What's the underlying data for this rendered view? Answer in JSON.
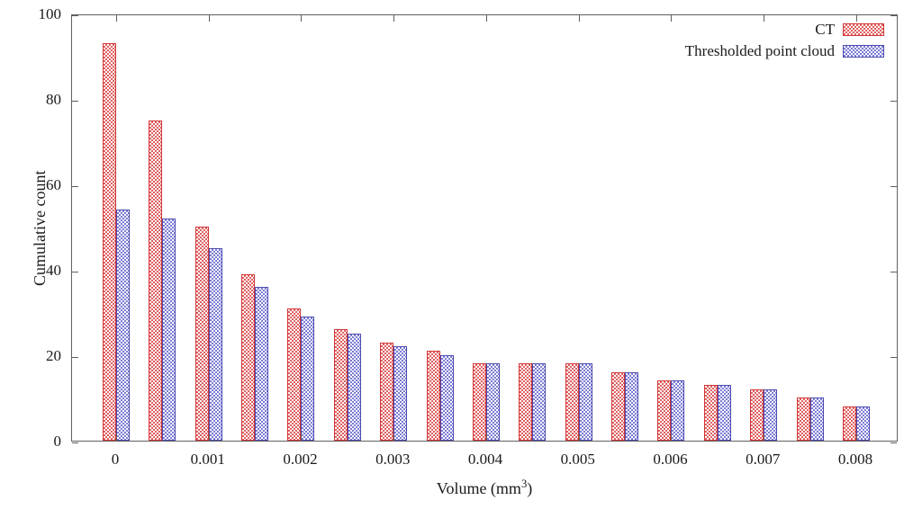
{
  "chart_data": {
    "type": "bar",
    "title": "",
    "ylabel": "Cumulative count",
    "xlabel": {
      "prefix": "Volume (mm",
      "sup": "3",
      "suffix": ")"
    },
    "x": [
      0,
      0.0005,
      0.001,
      0.0015,
      0.002,
      0.0025,
      0.003,
      0.0035,
      0.004,
      0.0045,
      0.005,
      0.0055,
      0.006,
      0.0065,
      0.007,
      0.0075,
      0.008
    ],
    "series": [
      {
        "name": "CT",
        "pattern_color": "#e06060",
        "border_color": "#d23434",
        "values": [
          93,
          75,
          50,
          39,
          31,
          26,
          23,
          21,
          18,
          18,
          18,
          16,
          14,
          13,
          12,
          10,
          8
        ]
      },
      {
        "name": "Thresholded point cloud",
        "pattern_color": "#7b7bd4",
        "border_color": "#4a4ab0",
        "values": [
          54,
          52,
          45,
          36,
          29,
          25,
          22,
          20,
          18,
          18,
          18,
          16,
          14,
          13,
          12,
          10,
          8
        ]
      }
    ],
    "xticks": [
      {
        "v": 0,
        "label": "0"
      },
      {
        "v": 0.001,
        "label": "0.001"
      },
      {
        "v": 0.002,
        "label": "0.002"
      },
      {
        "v": 0.003,
        "label": "0.003"
      },
      {
        "v": 0.004,
        "label": "0.004"
      },
      {
        "v": 0.005,
        "label": "0.005"
      },
      {
        "v": 0.006,
        "label": "0.006"
      },
      {
        "v": 0.007,
        "label": "0.007"
      },
      {
        "v": 0.008,
        "label": "0.008"
      }
    ],
    "yticks": [
      {
        "v": 0,
        "label": "0"
      },
      {
        "v": 20,
        "label": "20"
      },
      {
        "v": 40,
        "label": "40"
      },
      {
        "v": 60,
        "label": "60"
      },
      {
        "v": 80,
        "label": "80"
      },
      {
        "v": 100,
        "label": "100"
      }
    ],
    "xlim": [
      -0.000477,
      0.008458
    ],
    "ylim": [
      0,
      100
    ],
    "grid": false,
    "legend_position": "top-right-inside"
  }
}
